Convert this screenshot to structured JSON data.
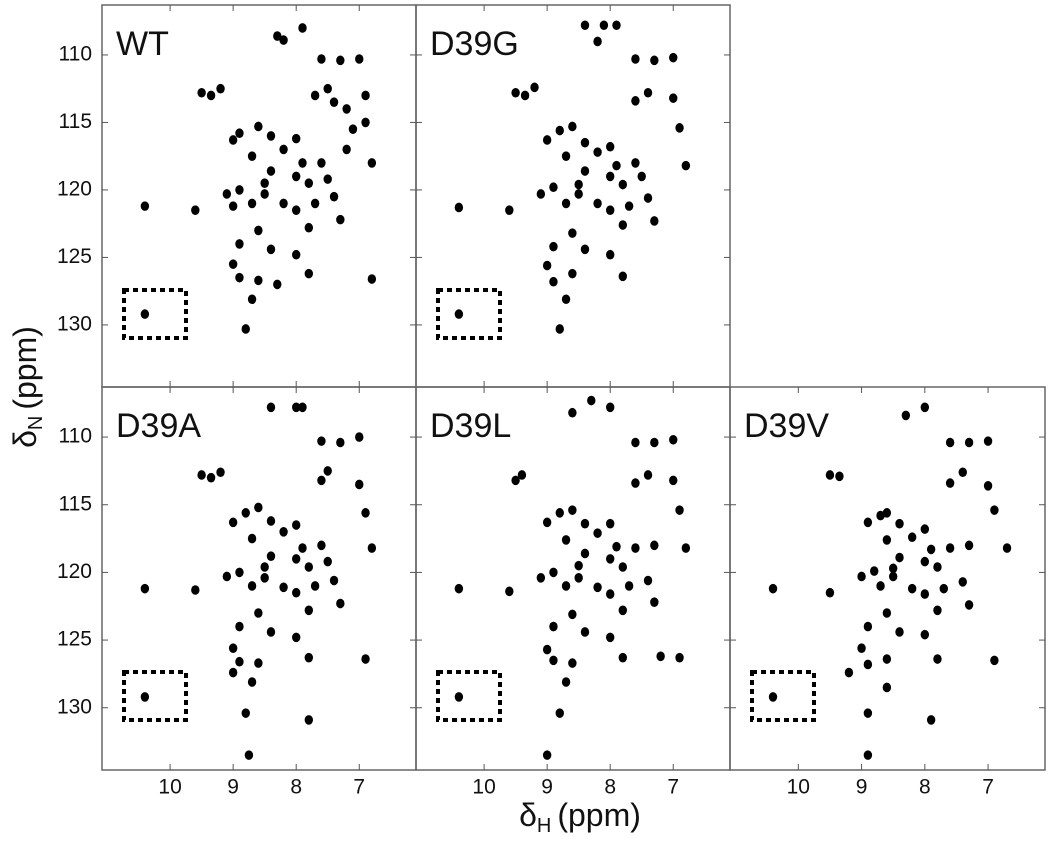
{
  "figure": {
    "x_label": {
      "symbol": "δ",
      "subscript": "H",
      "unit": "(ppm)"
    },
    "y_label": {
      "symbol": "δ",
      "subscript": "N",
      "unit": "(ppm)"
    }
  },
  "chart_data": [
    {
      "type": "scatter",
      "title": "WT",
      "color": "#000000",
      "x": [
        10.4,
        9.5,
        9.35,
        9.2,
        9.0,
        8.9,
        8.6,
        8.4,
        8.7,
        8.4,
        8.2,
        8.0,
        7.9,
        8.0,
        7.8,
        7.6,
        7.7,
        7.5,
        7.4,
        7.2,
        6.9,
        6.9,
        7.6,
        7.3,
        7.0,
        7.9,
        8.3,
        9.1,
        8.9,
        8.7,
        8.5,
        8.2,
        8.0,
        7.7,
        7.4,
        7.3,
        7.2,
        6.8,
        8.6,
        8.4,
        8.0,
        8.9,
        9.0,
        8.9,
        8.6,
        8.7,
        8.3,
        7.8,
        8.8,
        10.4,
        9.0,
        9.6,
        8.5,
        7.8,
        7.5,
        7.1,
        6.8,
        8.2
      ],
      "y": [
        121.2,
        112.8,
        113.0,
        112.5,
        116.3,
        115.8,
        115.3,
        116.0,
        117.5,
        118.6,
        117.0,
        116.2,
        118.0,
        119.0,
        119.5,
        118.0,
        113.0,
        112.5,
        113.5,
        114.0,
        113.0,
        115.0,
        110.3,
        110.4,
        110.3,
        108.0,
        108.6,
        120.3,
        120.0,
        121.0,
        120.3,
        121.0,
        121.5,
        121.0,
        120.5,
        122.2,
        117.0,
        118.0,
        123.0,
        124.4,
        124.8,
        124.0,
        125.5,
        126.5,
        126.7,
        128.1,
        127.0,
        126.2,
        130.3,
        129.2,
        121.2,
        121.5,
        119.5,
        122.8,
        119.2,
        115.5,
        126.6,
        108.9
      ],
      "xlim": [
        11.08,
        6.1
      ],
      "ylim": [
        106.3,
        134.6
      ],
      "xticks": [
        10,
        9,
        8,
        7
      ],
      "yticks": [
        110,
        115,
        120,
        125,
        130
      ]
    },
    {
      "type": "scatter",
      "title": "D39G",
      "color": "#000000",
      "x": [
        10.4,
        9.5,
        9.35,
        9.2,
        9.0,
        8.8,
        8.6,
        8.4,
        8.7,
        8.4,
        8.2,
        8.0,
        7.9,
        8.0,
        7.8,
        7.6,
        7.6,
        7.4,
        7.0,
        6.9,
        7.6,
        7.3,
        7.0,
        7.9,
        8.1,
        8.4,
        9.1,
        8.9,
        8.7,
        8.5,
        8.2,
        8.0,
        7.7,
        7.4,
        7.3,
        6.8,
        8.6,
        8.4,
        8.0,
        8.9,
        9.0,
        8.9,
        8.6,
        8.7,
        7.8,
        8.8,
        10.4,
        9.6,
        8.5,
        7.8,
        7.5,
        8.2
      ],
      "y": [
        121.3,
        112.8,
        113.0,
        112.4,
        116.3,
        115.6,
        115.3,
        116.5,
        117.5,
        118.6,
        117.2,
        116.8,
        118.2,
        119.0,
        119.6,
        118.0,
        113.4,
        112.8,
        113.2,
        115.4,
        110.3,
        110.4,
        110.2,
        107.8,
        107.8,
        107.8,
        120.3,
        119.8,
        121.0,
        120.3,
        121.0,
        121.5,
        121.2,
        120.6,
        122.3,
        118.2,
        123.2,
        124.4,
        124.8,
        124.2,
        125.6,
        126.8,
        126.2,
        128.1,
        126.4,
        130.3,
        129.2,
        121.5,
        119.6,
        122.6,
        119.0,
        109.0
      ],
      "xlim": [
        11.08,
        6.1
      ],
      "ylim": [
        106.3,
        134.6
      ],
      "xticks": [
        10,
        9,
        8,
        7
      ],
      "yticks": [
        110,
        115,
        120,
        125,
        130
      ]
    },
    {
      "type": "scatter",
      "title": "D39A",
      "color": "#000000",
      "x": [
        10.4,
        9.5,
        9.35,
        9.2,
        9.0,
        8.8,
        8.6,
        8.4,
        8.7,
        8.4,
        8.2,
        8.0,
        7.9,
        8.0,
        7.8,
        7.6,
        7.6,
        7.5,
        7.0,
        6.9,
        7.6,
        7.3,
        7.0,
        7.9,
        8.0,
        8.4,
        9.1,
        8.9,
        8.7,
        8.5,
        8.2,
        8.0,
        7.7,
        7.4,
        7.3,
        6.8,
        8.6,
        8.4,
        8.0,
        8.9,
        9.0,
        8.9,
        8.6,
        8.7,
        7.8,
        8.8,
        10.4,
        9.6,
        8.5,
        7.8,
        7.5,
        6.9,
        8.75,
        7.8,
        9.0
      ],
      "y": [
        121.2,
        112.8,
        113.0,
        112.6,
        116.3,
        115.6,
        115.2,
        116.2,
        117.5,
        118.8,
        117.0,
        116.5,
        118.2,
        119.0,
        119.6,
        118.0,
        113.2,
        112.5,
        113.5,
        115.6,
        110.3,
        110.4,
        110.0,
        107.8,
        107.8,
        107.8,
        120.3,
        120.0,
        121.0,
        120.4,
        121.1,
        121.5,
        121.0,
        120.6,
        122.3,
        118.2,
        123.0,
        124.4,
        124.8,
        124.0,
        125.6,
        126.6,
        126.7,
        128.1,
        126.3,
        130.4,
        129.2,
        121.3,
        119.6,
        122.8,
        119.2,
        126.4,
        133.5,
        130.9,
        127.4
      ],
      "xlim": [
        11.08,
        6.1
      ],
      "ylim": [
        106.3,
        134.6
      ],
      "xticks": [
        10,
        9,
        8,
        7
      ],
      "yticks": [
        110,
        115,
        120,
        125,
        130
      ]
    },
    {
      "type": "scatter",
      "title": "D39L",
      "color": "#000000",
      "x": [
        10.4,
        9.5,
        9.4,
        9.0,
        8.8,
        8.6,
        8.4,
        8.7,
        8.4,
        8.2,
        8.0,
        7.9,
        8.0,
        7.8,
        7.6,
        7.6,
        7.4,
        7.0,
        6.9,
        7.6,
        7.3,
        7.0,
        8.3,
        8.0,
        8.6,
        9.1,
        8.9,
        8.7,
        8.5,
        8.2,
        8.0,
        7.7,
        7.4,
        7.3,
        6.8,
        8.6,
        8.4,
        8.0,
        8.9,
        9.0,
        8.9,
        8.6,
        8.7,
        7.8,
        8.8,
        10.4,
        9.6,
        8.5,
        7.8,
        7.3,
        6.9,
        9.0,
        7.2
      ],
      "y": [
        121.2,
        113.2,
        112.8,
        116.3,
        115.6,
        115.4,
        116.4,
        117.6,
        118.6,
        117.1,
        116.4,
        118.1,
        119.0,
        119.6,
        118.2,
        113.4,
        112.8,
        113.2,
        115.4,
        110.4,
        110.4,
        110.2,
        107.3,
        107.8,
        108.2,
        120.4,
        120.0,
        121.0,
        120.4,
        121.1,
        121.6,
        121.0,
        120.6,
        122.2,
        118.2,
        123.1,
        124.4,
        124.8,
        124.0,
        125.7,
        126.5,
        126.7,
        128.1,
        126.3,
        130.4,
        129.2,
        121.4,
        119.5,
        122.8,
        118.0,
        126.3,
        133.5,
        126.2
      ],
      "xlim": [
        11.08,
        6.1
      ],
      "ylim": [
        106.3,
        134.6
      ],
      "xticks": [
        10,
        9,
        8,
        7
      ],
      "yticks": [
        110,
        115,
        120,
        125,
        130
      ]
    },
    {
      "type": "scatter",
      "title": "D39V",
      "color": "#000000",
      "x": [
        10.4,
        9.5,
        9.35,
        8.9,
        8.7,
        8.6,
        8.4,
        8.6,
        8.4,
        8.2,
        8.0,
        7.9,
        8.0,
        7.8,
        7.6,
        7.6,
        7.4,
        7.0,
        6.9,
        7.6,
        7.3,
        7.0,
        8.0,
        8.3,
        9.0,
        8.8,
        8.7,
        8.5,
        8.2,
        8.0,
        7.7,
        7.4,
        7.3,
        6.7,
        8.6,
        8.4,
        8.0,
        8.9,
        9.0,
        8.9,
        8.6,
        8.6,
        7.8,
        8.9,
        10.4,
        9.5,
        8.5,
        7.8,
        7.3,
        6.9,
        8.9,
        7.9,
        9.2
      ],
      "y": [
        121.2,
        112.8,
        112.9,
        116.3,
        115.8,
        115.6,
        116.4,
        117.6,
        118.9,
        117.4,
        116.8,
        118.3,
        119.2,
        119.6,
        118.2,
        113.4,
        112.6,
        113.6,
        115.4,
        110.4,
        110.4,
        110.3,
        107.8,
        108.4,
        120.3,
        119.9,
        121.0,
        120.3,
        121.2,
        121.6,
        121.2,
        120.7,
        122.4,
        118.2,
        123.0,
        124.4,
        124.6,
        124.0,
        125.6,
        126.8,
        126.4,
        128.5,
        126.4,
        130.4,
        129.2,
        121.5,
        119.7,
        122.8,
        118.0,
        126.5,
        133.5,
        130.9,
        127.4
      ],
      "xlim": [
        11.08,
        6.1
      ],
      "ylim": [
        106.3,
        134.6
      ],
      "xticks": [
        10,
        9,
        8,
        7
      ],
      "yticks": [
        110,
        115,
        120,
        125,
        130
      ]
    }
  ]
}
